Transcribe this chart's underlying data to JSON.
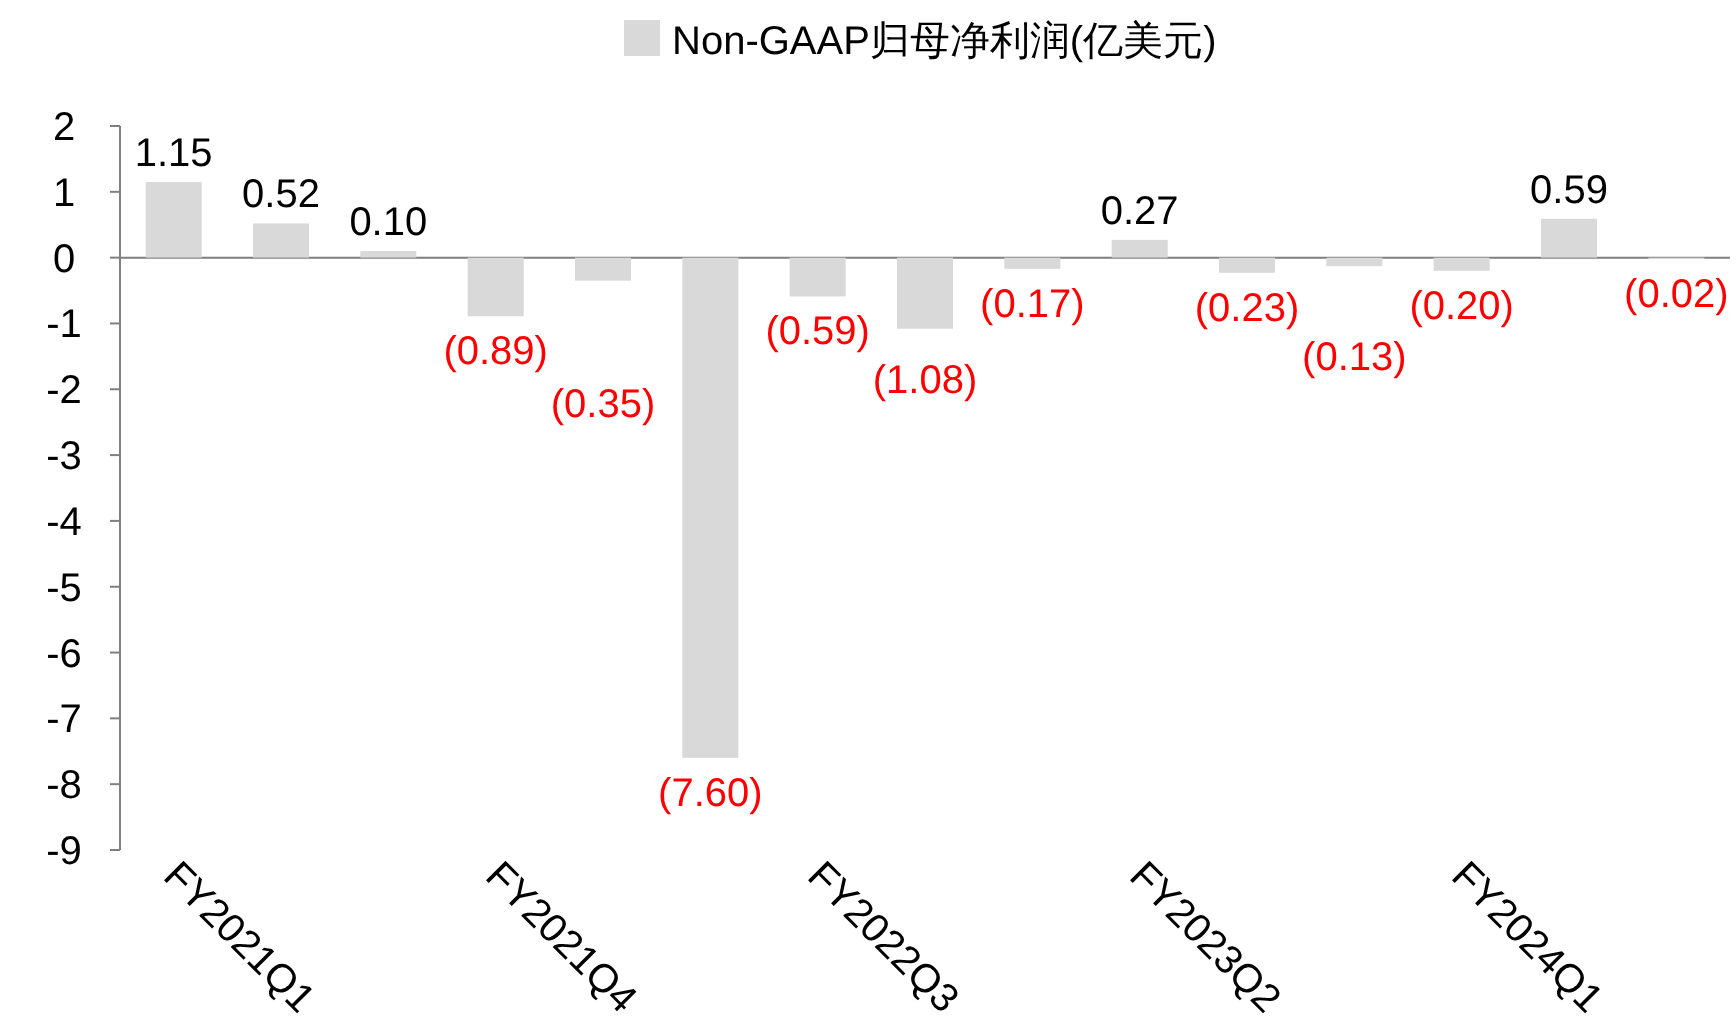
{
  "chart_data": {
    "type": "bar",
    "categories": [
      "FY2021Q1",
      null,
      null,
      "FY2021Q4",
      null,
      null,
      "FY2022Q3",
      null,
      null,
      "FY2023Q2",
      null,
      null,
      "FY2024Q1",
      null,
      null
    ],
    "series": [
      {
        "name": "Non-GAAP归母净利润(亿美元)",
        "color": "#d9d9d9",
        "values": [
          1.15,
          0.52,
          0.1,
          -0.89,
          -0.35,
          -7.6,
          -0.59,
          -1.08,
          -0.17,
          0.27,
          -0.23,
          -0.13,
          -0.2,
          0.59,
          -0.02
        ],
        "value_labels": [
          "1.15",
          "0.52",
          "0.10",
          "(0.89)",
          "(0.35)",
          "(7.60)",
          "(0.59)",
          "(1.08)",
          "(0.17)",
          "0.27",
          "(0.23)",
          "(0.13)",
          "(0.20)",
          "0.59",
          "(0.02)"
        ]
      }
    ],
    "ylim": [
      -9,
      2
    ],
    "yticks": [
      -9,
      -8,
      -7,
      -6,
      -5,
      -4,
      -3,
      -2,
      -1,
      0,
      1,
      2
    ],
    "legend": "top"
  }
}
